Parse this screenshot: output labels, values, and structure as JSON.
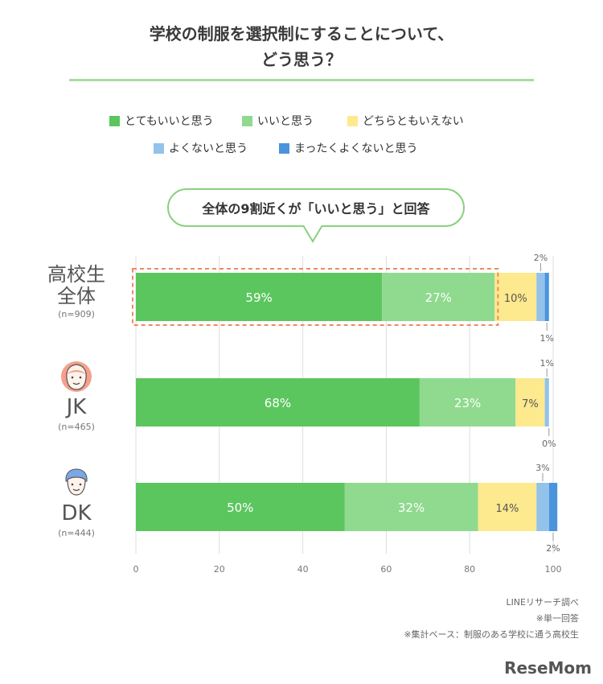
{
  "title": {
    "line1": "学校の制服を選択制にすることについて、",
    "line2": "どう思う？"
  },
  "legend": [
    {
      "label": "とてもいいと思う",
      "color": "#5bc65e"
    },
    {
      "label": "いいと思う",
      "color": "#8fda8e"
    },
    {
      "label": "どちらともいえない",
      "color": "#fde98e"
    },
    {
      "label": "よくないと思う",
      "color": "#93c2ea"
    },
    {
      "label": "まったくよくないと思う",
      "color": "#4b94dc"
    }
  ],
  "callout": "全体の9割近くが「いいと思う」と回答",
  "groups": [
    {
      "name_line1": "高校生",
      "name_line2": "全体",
      "n": "(n=909)",
      "icon": "none"
    },
    {
      "name_line1": "JK",
      "name_line2": "",
      "n": "(n=465)",
      "icon": "girl-face-icon"
    },
    {
      "name_line1": "DK",
      "name_line2": "",
      "n": "(n=444)",
      "icon": "boy-face-icon"
    }
  ],
  "chart_data": {
    "type": "bar",
    "orientation": "horizontal",
    "stacked": true,
    "categories": [
      "高校生全体",
      "JK",
      "DK"
    ],
    "series": [
      {
        "name": "とてもいいと思う",
        "values": [
          59,
          68,
          50
        ],
        "color": "#5bc65e"
      },
      {
        "name": "いいと思う",
        "values": [
          27,
          23,
          32
        ],
        "color": "#8fda8e"
      },
      {
        "name": "どちらともいえない",
        "values": [
          10,
          7,
          14
        ],
        "color": "#fde98e"
      },
      {
        "name": "よくないと思う",
        "values": [
          2,
          1,
          3
        ],
        "color": "#93c2ea"
      },
      {
        "name": "まったくよくないと思う",
        "values": [
          1,
          0,
          2
        ],
        "color": "#4b94dc"
      }
    ],
    "value_suffix": "%",
    "xlim": [
      0,
      100
    ],
    "xticks": [
      "0",
      "20",
      "40",
      "60",
      "80",
      "100"
    ],
    "grid": true,
    "highlight": "高校生全体: とてもいいと思う + いいと思う"
  },
  "footnotes": [
    "LINEリサーチ調べ",
    "※単一回答",
    "※集計ベース：制服のある学校に通う高校生"
  ],
  "logo": "ReseMom"
}
